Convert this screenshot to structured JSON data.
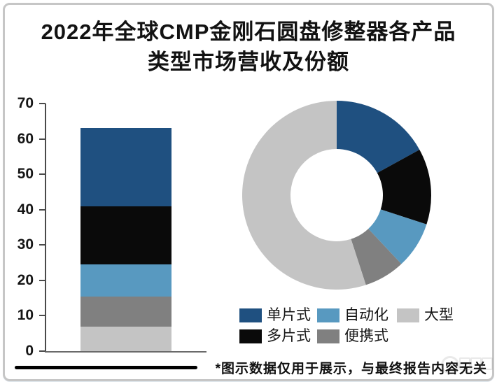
{
  "title": {
    "full": "2022年全球CMP金刚石圆盘修整器各产品类型市场营收及份额",
    "line1": "2022年全球CMP金刚石圆盘修整器各产品",
    "line2": "类型市场营收及份额"
  },
  "footnote": "*图示数据仅用于展示，与最终报告内容无关",
  "colors": {
    "single_piece": "#1F5080",
    "multi_piece": "#0A0A0A",
    "automated": "#5899C0",
    "portable": "#808080",
    "large": "#C4C4C4",
    "axis": "#4A4A4A",
    "title_text": "#121212",
    "frame_border": "#C6C6C6"
  },
  "legend": {
    "rows": [
      [
        {
          "id": "single-piece",
          "label": "单片式",
          "color": "#1F5080"
        },
        {
          "id": "automated",
          "label": "自动化",
          "color": "#5899C0"
        },
        {
          "id": "large",
          "label": "大型",
          "color": "#C4C4C4"
        }
      ],
      [
        {
          "id": "multi-piece",
          "label": "多片式",
          "color": "#0A0A0A"
        },
        {
          "id": "portable",
          "label": "便携式",
          "color": "#808080"
        }
      ]
    ]
  },
  "chart_data": [
    {
      "type": "bar",
      "stacked": true,
      "categories": [
        "2022"
      ],
      "series": [
        {
          "id": "large",
          "name": "大型",
          "values": [
            7
          ],
          "color": "#C4C4C4"
        },
        {
          "id": "portable",
          "name": "便携式",
          "values": [
            8.5
          ],
          "color": "#808080"
        },
        {
          "id": "automated",
          "name": "自动化",
          "values": [
            9
          ],
          "color": "#5899C0"
        },
        {
          "id": "multi-piece",
          "name": "多片式",
          "values": [
            16.5
          ],
          "color": "#0A0A0A"
        },
        {
          "id": "single-piece",
          "name": "单片式",
          "values": [
            22
          ],
          "color": "#1F5080"
        }
      ],
      "stack_total": 63,
      "ylim": [
        0,
        70
      ],
      "yticks": [
        0,
        10,
        20,
        30,
        40,
        50,
        60,
        70
      ],
      "grid": false,
      "xlabel": "",
      "ylabel": "",
      "note": "stack order bottom to top"
    },
    {
      "type": "pie",
      "donut": true,
      "inner_radius_ratio": 0.49,
      "start_angle_deg": 0,
      "direction": "clockwise",
      "slices": [
        {
          "id": "single-piece",
          "label": "单片式",
          "value_pct": 17,
          "color": "#1F5080"
        },
        {
          "id": "multi-piece",
          "label": "多片式",
          "value_pct": 13,
          "color": "#0A0A0A"
        },
        {
          "id": "automated",
          "label": "自动化",
          "value_pct": 8,
          "color": "#5899C0"
        },
        {
          "id": "portable",
          "label": "便携式",
          "value_pct": 7,
          "color": "#808080"
        },
        {
          "id": "large",
          "label": "大型",
          "value_pct": 55,
          "color": "#C4C4C4"
        }
      ],
      "legend_position": "bottom"
    }
  ]
}
